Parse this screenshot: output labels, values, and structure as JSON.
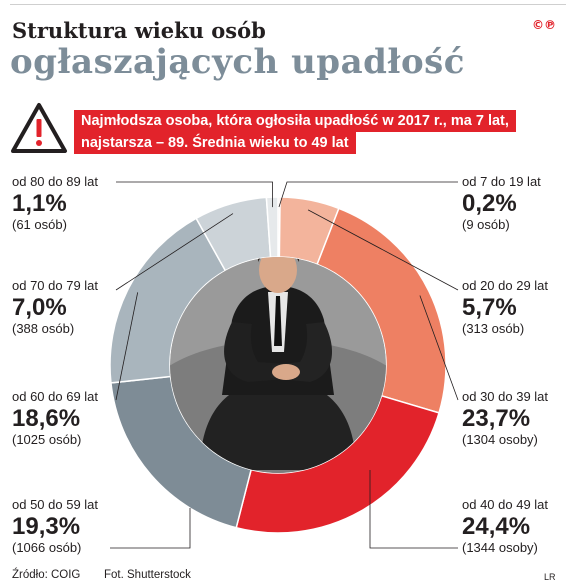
{
  "header": {
    "title_line1": "Struktura wieku osób",
    "title_line2": "ogłaszających upadłość",
    "copyright": "©℗"
  },
  "alert": {
    "line1": "Najmłodsza osoba, która ogłosiła upadłość w 2017 r., ma 7 lat,",
    "line2": "najstarsza – 89. Średnia wieku to 49 lat"
  },
  "colors": {
    "title_gray": "#7d8d99",
    "alert_red": "#e2232b"
  },
  "chart_data": {
    "type": "pie",
    "title": "Struktura wieku osób ogłaszających upadłość",
    "segments": [
      {
        "range": "od 7 do 19 lat",
        "pct_label": "0,2%",
        "count_label": "(9 osób)",
        "value": 0.2,
        "color": "#f6ddd3"
      },
      {
        "range": "od 20 do 29 lat",
        "pct_label": "5,7%",
        "count_label": "(313 osób)",
        "value": 5.7,
        "color": "#f3b49c"
      },
      {
        "range": "od 30 do 39 lat",
        "pct_label": "23,7%",
        "count_label": "(1304 osoby)",
        "value": 23.7,
        "color": "#ee8063"
      },
      {
        "range": "od 40 do 49 lat",
        "pct_label": "24,4%",
        "count_label": "(1344 osoby)",
        "value": 24.4,
        "color": "#e2232b"
      },
      {
        "range": "od 50 do 59 lat",
        "pct_label": "19,3%",
        "count_label": "(1066 osób)",
        "value": 19.3,
        "color": "#7e8c96"
      },
      {
        "range": "od 60 do 69 lat",
        "pct_label": "18,6%",
        "count_label": "(1025 osób)",
        "value": 18.6,
        "color": "#a9b5bd"
      },
      {
        "range": "od 70 do 79 lat",
        "pct_label": "7,0%",
        "count_label": "(388 osób)",
        "value": 7.0,
        "color": "#ccd3d8"
      },
      {
        "range": "od 80 do 89 lat",
        "pct_label": "1,1%",
        "count_label": "(61 osób)",
        "value": 1.1,
        "color": "#e6e9eb"
      }
    ]
  },
  "footer": {
    "source": "Źródło: COIG",
    "photo": "Fot. Shutterstock",
    "author": "LR"
  }
}
